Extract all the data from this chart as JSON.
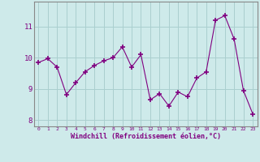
{
  "x": [
    0,
    1,
    2,
    3,
    4,
    5,
    6,
    7,
    8,
    9,
    10,
    11,
    12,
    13,
    14,
    15,
    16,
    17,
    18,
    19,
    20,
    21,
    22,
    23
  ],
  "y": [
    9.85,
    9.97,
    9.7,
    8.82,
    9.2,
    9.55,
    9.75,
    9.9,
    10.0,
    10.35,
    9.7,
    10.1,
    8.65,
    8.85,
    8.45,
    8.9,
    8.75,
    9.35,
    9.55,
    11.2,
    11.35,
    10.6,
    8.95,
    8.2
  ],
  "line_color": "#800080",
  "marker": "+",
  "marker_size": 4,
  "bg_color": "#ceeaea",
  "grid_color": "#aacfcf",
  "xlabel": "Windchill (Refroidissement éolien,°C)",
  "xlabel_color": "#800080",
  "tick_color": "#800080",
  "spine_color": "#888888",
  "ylim": [
    7.8,
    11.8
  ],
  "yticks": [
    8,
    9,
    10,
    11
  ],
  "xlim": [
    -0.5,
    23.5
  ]
}
